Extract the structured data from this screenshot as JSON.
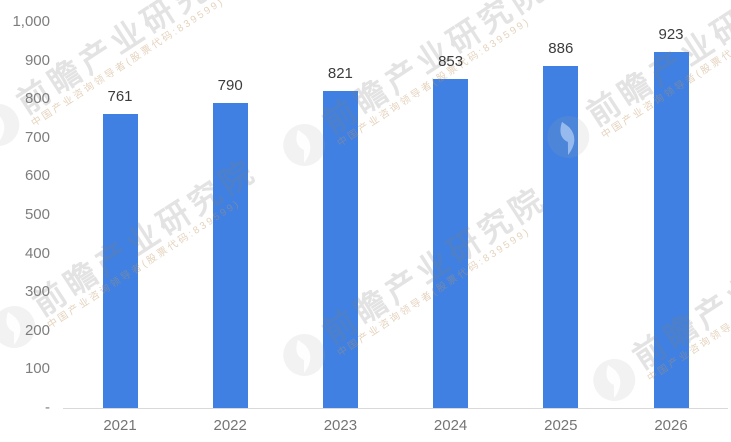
{
  "chart_data": {
    "type": "bar",
    "title": "",
    "categories": [
      "2021",
      "2022",
      "2023",
      "2024",
      "2025",
      "2026"
    ],
    "values": [
      761,
      790,
      821,
      853,
      886,
      923
    ],
    "value_labels": [
      "761",
      "790",
      "821",
      "853",
      "886",
      "923"
    ],
    "xlabel": "",
    "ylabel": "",
    "ylim": [
      0,
      1000
    ],
    "y_tick_interval": 100,
    "y_ticks": [
      {
        "label": "1,000",
        "value": 1000
      },
      {
        "label": "900",
        "value": 900
      },
      {
        "label": "800",
        "value": 800
      },
      {
        "label": "700",
        "value": 700
      },
      {
        "label": "600",
        "value": 600
      },
      {
        "label": "500",
        "value": 500
      },
      {
        "label": "400",
        "value": 400
      },
      {
        "label": "300",
        "value": 300
      },
      {
        "label": "200",
        "value": 200
      },
      {
        "label": "100",
        "value": 100
      },
      {
        "label": "-",
        "value": 0
      }
    ],
    "grid": false,
    "legend": false,
    "legend_position": "none"
  },
  "watermark": {
    "text": "前瞻产业研究院",
    "subtext": "中国产业咨询领导者(股票代码:839599)"
  },
  "colors": {
    "bar": "#3F80E2",
    "value_label": "#3C3C3C",
    "axis_label": "#7D7D7D",
    "axis_line": "#D9D9D9",
    "background": "#FFFFFF",
    "watermark_text": "rgba(128,128,128,0.22)",
    "watermark_subtext": "rgba(190,148,95,0.42)"
  }
}
